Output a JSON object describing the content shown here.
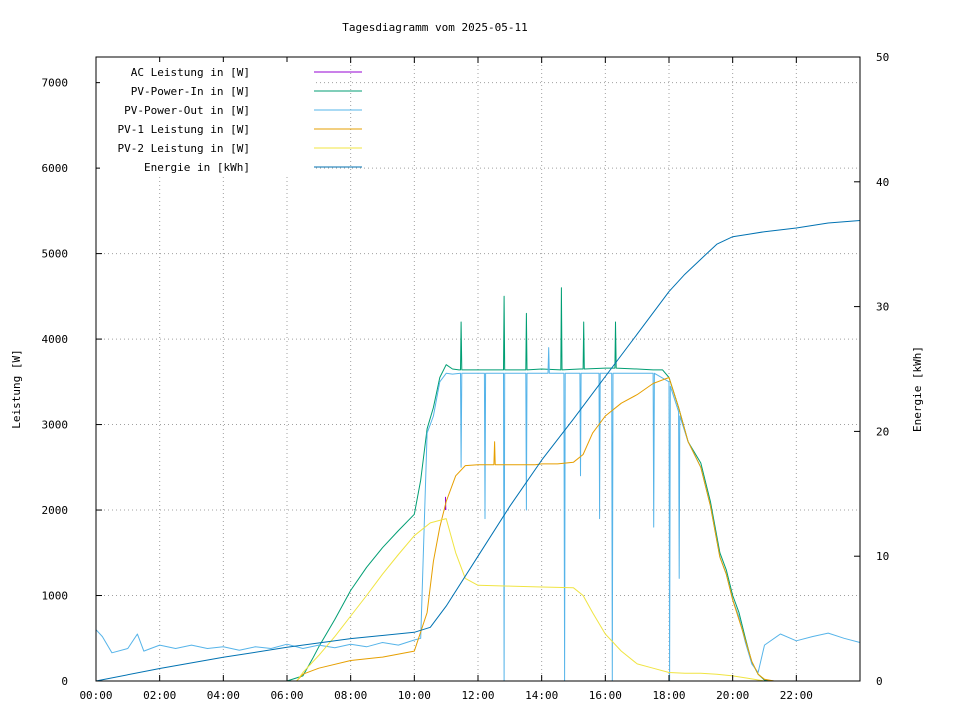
{
  "chart_data": {
    "type": "line",
    "title": "Tagesdiagramm vom 2025-05-11",
    "ylabel": "Leistung [W]",
    "y2label": "Energie [kWh]",
    "xlim": [
      0,
      24
    ],
    "ylim": [
      0,
      7300
    ],
    "y2lim": [
      0,
      50
    ],
    "xticks": [
      {
        "v": 0,
        "label": "00:00"
      },
      {
        "v": 2,
        "label": "02:00"
      },
      {
        "v": 4,
        "label": "04:00"
      },
      {
        "v": 6,
        "label": "06:00"
      },
      {
        "v": 8,
        "label": "08:00"
      },
      {
        "v": 10,
        "label": "10:00"
      },
      {
        "v": 12,
        "label": "12:00"
      },
      {
        "v": 14,
        "label": "14:00"
      },
      {
        "v": 16,
        "label": "16:00"
      },
      {
        "v": 18,
        "label": "18:00"
      },
      {
        "v": 20,
        "label": "20:00"
      },
      {
        "v": 22,
        "label": "22:00"
      }
    ],
    "yticks": [
      0,
      1000,
      2000,
      3000,
      4000,
      5000,
      6000,
      7000
    ],
    "y2ticks": [
      0,
      10,
      20,
      30,
      40,
      50
    ],
    "grid": true,
    "legend_position": "top-left",
    "series": [
      {
        "name": "AC Leistung in [W]",
        "axis": "left",
        "color": "#9400d3",
        "points": [
          [
            10.98,
            2000
          ],
          [
            10.98,
            2150
          ],
          [
            10.99,
            2000
          ]
        ]
      },
      {
        "name": "PV-Power-In in [W]",
        "axis": "left",
        "color": "#009e73",
        "points": [
          [
            6.0,
            0
          ],
          [
            6.5,
            60
          ],
          [
            6.8,
            260
          ],
          [
            7.0,
            400
          ],
          [
            7.5,
            720
          ],
          [
            8.0,
            1060
          ],
          [
            8.5,
            1330
          ],
          [
            9.0,
            1560
          ],
          [
            9.5,
            1760
          ],
          [
            10.0,
            1950
          ],
          [
            10.2,
            2350
          ],
          [
            10.4,
            2950
          ],
          [
            10.6,
            3200
          ],
          [
            10.8,
            3550
          ],
          [
            11.0,
            3700
          ],
          [
            11.2,
            3650
          ],
          [
            11.4,
            3640
          ],
          [
            11.45,
            3640
          ],
          [
            11.47,
            4200
          ],
          [
            11.49,
            3640
          ],
          [
            12.0,
            3640
          ],
          [
            12.8,
            3640
          ],
          [
            12.82,
            4500
          ],
          [
            12.84,
            3640
          ],
          [
            13.5,
            3640
          ],
          [
            13.52,
            4300
          ],
          [
            13.54,
            3640
          ],
          [
            14.0,
            3650
          ],
          [
            14.6,
            3640
          ],
          [
            14.62,
            4600
          ],
          [
            14.64,
            3640
          ],
          [
            15.2,
            3650
          ],
          [
            15.3,
            3650
          ],
          [
            15.32,
            4200
          ],
          [
            15.34,
            3650
          ],
          [
            16.0,
            3660
          ],
          [
            16.3,
            3660
          ],
          [
            16.32,
            4200
          ],
          [
            16.34,
            3660
          ],
          [
            17.0,
            3650
          ],
          [
            17.5,
            3640
          ],
          [
            17.8,
            3640
          ],
          [
            18.0,
            3550
          ],
          [
            18.3,
            3200
          ],
          [
            18.6,
            2800
          ],
          [
            19.0,
            2550
          ],
          [
            19.3,
            2100
          ],
          [
            19.6,
            1500
          ],
          [
            19.8,
            1300
          ],
          [
            20.0,
            1000
          ],
          [
            20.2,
            800
          ],
          [
            20.4,
            500
          ],
          [
            20.6,
            220
          ],
          [
            20.8,
            80
          ],
          [
            21.0,
            10
          ],
          [
            21.3,
            0
          ]
        ]
      },
      {
        "name": "PV-Power-Out in [W]",
        "axis": "left",
        "color": "#56b4e9",
        "points": [
          [
            0.0,
            600
          ],
          [
            0.2,
            520
          ],
          [
            0.5,
            330
          ],
          [
            1.0,
            380
          ],
          [
            1.3,
            550
          ],
          [
            1.5,
            350
          ],
          [
            2.0,
            420
          ],
          [
            2.5,
            380
          ],
          [
            3.0,
            420
          ],
          [
            3.5,
            380
          ],
          [
            4.0,
            400
          ],
          [
            4.5,
            360
          ],
          [
            5.0,
            400
          ],
          [
            5.5,
            380
          ],
          [
            6.0,
            430
          ],
          [
            6.5,
            380
          ],
          [
            7.0,
            420
          ],
          [
            7.5,
            390
          ],
          [
            8.0,
            430
          ],
          [
            8.5,
            400
          ],
          [
            9.0,
            450
          ],
          [
            9.5,
            420
          ],
          [
            10.0,
            480
          ],
          [
            10.2,
            500
          ],
          [
            10.4,
            2900
          ],
          [
            10.6,
            3100
          ],
          [
            10.8,
            3500
          ],
          [
            11.0,
            3600
          ],
          [
            11.2,
            3590
          ],
          [
            11.45,
            3600
          ],
          [
            11.47,
            2500
          ],
          [
            11.49,
            3600
          ],
          [
            12.0,
            3600
          ],
          [
            12.2,
            3600
          ],
          [
            12.22,
            1900
          ],
          [
            12.24,
            3600
          ],
          [
            12.8,
            3600
          ],
          [
            12.82,
            0
          ],
          [
            12.84,
            3600
          ],
          [
            13.5,
            3600
          ],
          [
            13.52,
            2000
          ],
          [
            13.54,
            3600
          ],
          [
            14.0,
            3600
          ],
          [
            14.2,
            3600
          ],
          [
            14.22,
            3900
          ],
          [
            14.24,
            3600
          ],
          [
            14.7,
            3600
          ],
          [
            14.72,
            0
          ],
          [
            14.74,
            3600
          ],
          [
            15.2,
            3600
          ],
          [
            15.22,
            2400
          ],
          [
            15.24,
            3600
          ],
          [
            15.8,
            3600
          ],
          [
            15.82,
            1900
          ],
          [
            15.84,
            3600
          ],
          [
            16.2,
            3600
          ],
          [
            16.22,
            0
          ],
          [
            16.24,
            3600
          ],
          [
            17.0,
            3600
          ],
          [
            17.5,
            3600
          ],
          [
            17.52,
            1800
          ],
          [
            17.54,
            3600
          ],
          [
            18.0,
            3500
          ],
          [
            18.02,
            0
          ],
          [
            18.04,
            3450
          ],
          [
            18.3,
            3150
          ],
          [
            18.32,
            1200
          ],
          [
            18.34,
            3100
          ],
          [
            18.6,
            2800
          ],
          [
            19.0,
            2500
          ],
          [
            19.3,
            2050
          ],
          [
            19.6,
            1450
          ],
          [
            19.8,
            1250
          ],
          [
            20.0,
            950
          ],
          [
            20.2,
            750
          ],
          [
            20.4,
            450
          ],
          [
            20.6,
            200
          ],
          [
            20.8,
            100
          ],
          [
            21.0,
            420
          ],
          [
            21.5,
            550
          ],
          [
            22.0,
            470
          ],
          [
            22.5,
            520
          ],
          [
            23.0,
            560
          ],
          [
            23.5,
            500
          ],
          [
            24.0,
            450
          ]
        ]
      },
      {
        "name": "PV-1 Leistung in [W]",
        "axis": "left",
        "color": "#e69f00",
        "points": [
          [
            6.3,
            0
          ],
          [
            6.5,
            80
          ],
          [
            7.0,
            150
          ],
          [
            8.0,
            240
          ],
          [
            9.0,
            280
          ],
          [
            10.0,
            350
          ],
          [
            10.4,
            800
          ],
          [
            10.6,
            1400
          ],
          [
            10.8,
            1800
          ],
          [
            11.0,
            2100
          ],
          [
            11.3,
            2400
          ],
          [
            11.6,
            2520
          ],
          [
            12.0,
            2530
          ],
          [
            12.5,
            2530
          ],
          [
            12.52,
            2800
          ],
          [
            12.54,
            2530
          ],
          [
            13.0,
            2530
          ],
          [
            13.8,
            2530
          ],
          [
            14.0,
            2540
          ],
          [
            14.5,
            2540
          ],
          [
            15.0,
            2560
          ],
          [
            15.3,
            2650
          ],
          [
            15.6,
            2900
          ],
          [
            16.0,
            3100
          ],
          [
            16.5,
            3250
          ],
          [
            17.0,
            3350
          ],
          [
            17.5,
            3480
          ],
          [
            18.0,
            3550
          ],
          [
            18.3,
            3200
          ],
          [
            18.6,
            2800
          ],
          [
            19.0,
            2500
          ],
          [
            19.3,
            2050
          ],
          [
            19.6,
            1450
          ],
          [
            19.8,
            1250
          ],
          [
            20.0,
            950
          ],
          [
            20.3,
            600
          ],
          [
            20.6,
            230
          ],
          [
            20.8,
            80
          ],
          [
            21.0,
            20
          ],
          [
            21.3,
            0
          ]
        ]
      },
      {
        "name": "PV-2 Leistung in [W]",
        "axis": "left",
        "color": "#f0e442",
        "points": [
          [
            6.3,
            0
          ],
          [
            6.5,
            100
          ],
          [
            7.0,
            300
          ],
          [
            7.5,
            520
          ],
          [
            8.0,
            760
          ],
          [
            8.5,
            1000
          ],
          [
            9.0,
            1250
          ],
          [
            9.5,
            1480
          ],
          [
            10.0,
            1700
          ],
          [
            10.5,
            1850
          ],
          [
            11.0,
            1900
          ],
          [
            11.3,
            1500
          ],
          [
            11.6,
            1200
          ],
          [
            12.0,
            1120
          ],
          [
            13.0,
            1110
          ],
          [
            14.0,
            1100
          ],
          [
            15.0,
            1090
          ],
          [
            15.3,
            1000
          ],
          [
            15.6,
            800
          ],
          [
            16.0,
            550
          ],
          [
            16.5,
            350
          ],
          [
            17.0,
            200
          ],
          [
            17.5,
            150
          ],
          [
            18.0,
            100
          ],
          [
            18.5,
            90
          ],
          [
            19.0,
            90
          ],
          [
            19.5,
            80
          ],
          [
            20.0,
            60
          ],
          [
            20.5,
            30
          ],
          [
            21.0,
            0
          ]
        ]
      },
      {
        "name": "Energie in [kWh]",
        "axis": "right",
        "color": "#0072b2",
        "points": [
          [
            0.0,
            0
          ],
          [
            2.0,
            1.0
          ],
          [
            4.0,
            1.9
          ],
          [
            6.0,
            2.7
          ],
          [
            8.0,
            3.4
          ],
          [
            10.0,
            3.9
          ],
          [
            10.5,
            4.3
          ],
          [
            11.0,
            6.0
          ],
          [
            12.0,
            10.0
          ],
          [
            13.0,
            14.0
          ],
          [
            14.0,
            17.7
          ],
          [
            15.0,
            21.0
          ],
          [
            16.0,
            24.4
          ],
          [
            17.0,
            27.8
          ],
          [
            18.0,
            31.2
          ],
          [
            18.5,
            32.6
          ],
          [
            19.0,
            33.8
          ],
          [
            19.5,
            35.0
          ],
          [
            20.0,
            35.6
          ],
          [
            20.5,
            35.8
          ],
          [
            21.0,
            36.0
          ],
          [
            22.0,
            36.3
          ],
          [
            23.0,
            36.7
          ],
          [
            24.0,
            36.9
          ]
        ]
      }
    ]
  }
}
